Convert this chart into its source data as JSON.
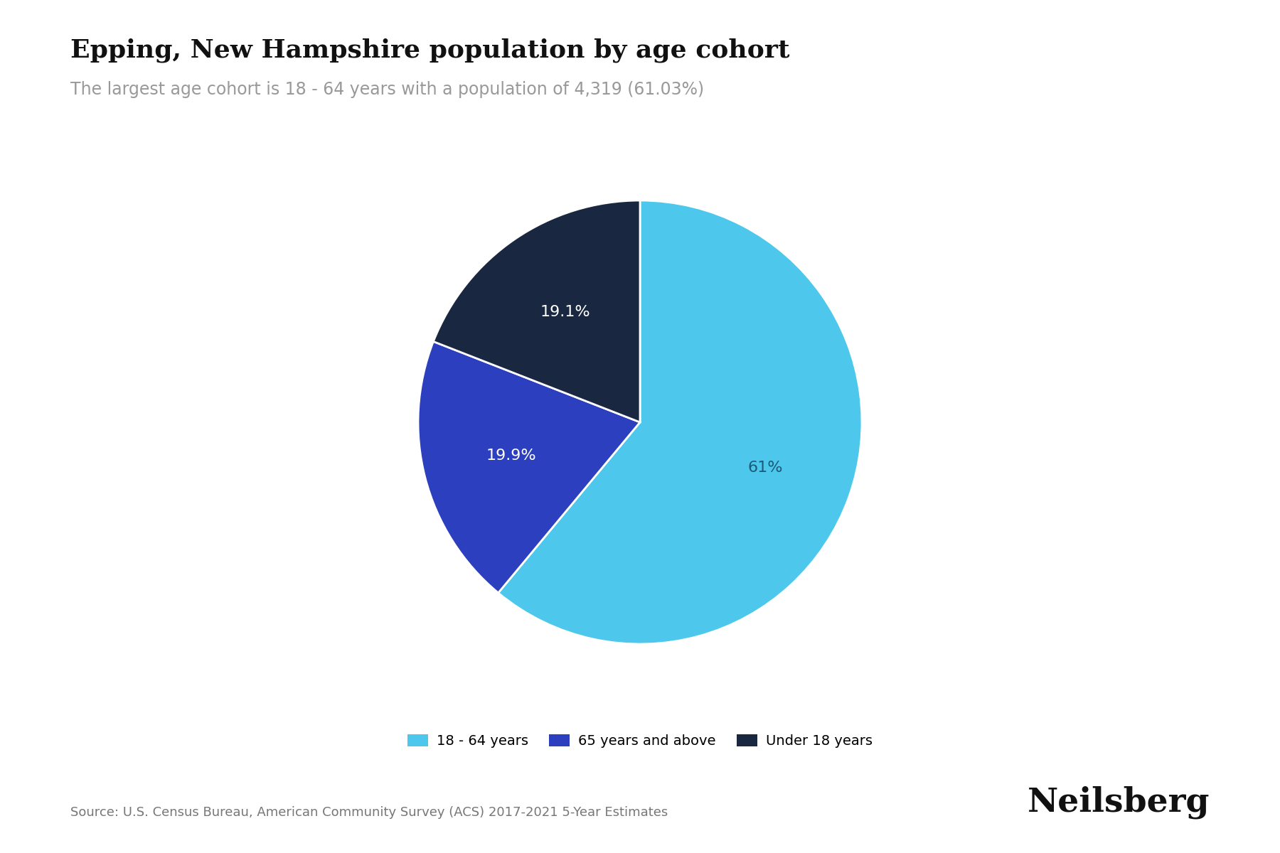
{
  "title": "Epping, New Hampshire population by age cohort",
  "subtitle": "The largest age cohort is 18 - 64 years with a population of 4,319 (61.03%)",
  "labels": [
    "18 - 64 years",
    "65 years and above",
    "Under 18 years"
  ],
  "values": [
    61.03,
    19.9,
    19.07
  ],
  "colors": [
    "#4DC8EC",
    "#2B3FBF",
    "#192840"
  ],
  "autopct_labels": [
    "61%",
    "19.9%",
    "19.1%"
  ],
  "autopct_text_colors": [
    "#1a5a7a",
    "#ffffff",
    "#ffffff"
  ],
  "source_text": "Source: U.S. Census Bureau, American Community Survey (ACS) 2017-2021 5-Year Estimates",
  "brand_text": "Neilsberg",
  "title_fontsize": 26,
  "subtitle_fontsize": 17,
  "label_fontsize": 16,
  "source_fontsize": 13,
  "brand_fontsize": 34,
  "background_color": "#ffffff",
  "text_color_dark": "#111111",
  "text_color_subtitle": "#999999",
  "startangle": 90,
  "counterclock": false
}
